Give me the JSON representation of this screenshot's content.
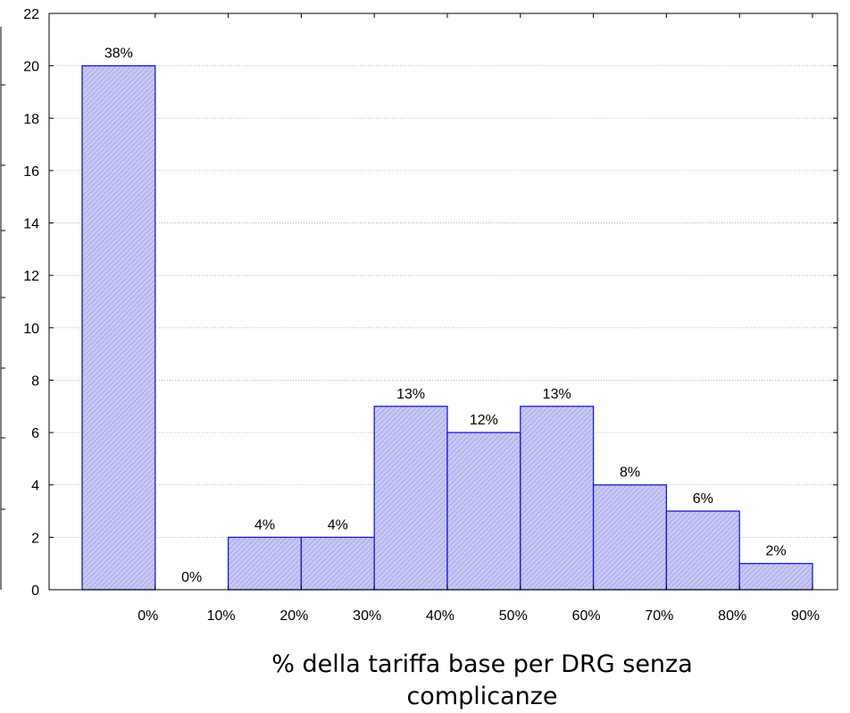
{
  "chart_data": {
    "type": "bar",
    "title": "",
    "xlabel_line1": "% della tariffa base per DRG senza",
    "xlabel_line2": "complicanze",
    "ylabel": "",
    "ylim": [
      0,
      22
    ],
    "yticks": [
      0,
      2,
      4,
      6,
      8,
      10,
      12,
      14,
      16,
      18,
      20,
      22
    ],
    "xtick_labels": [
      "0%",
      "10%",
      "20%",
      "30%",
      "40%",
      "50%",
      "60%",
      "70%",
      "80%",
      "90%"
    ],
    "values": [
      20,
      0,
      2,
      2,
      7,
      6,
      7,
      4,
      3,
      1
    ],
    "bar_labels": [
      "38%",
      "0%",
      "4%",
      "4%",
      "13%",
      "12%",
      "13%",
      "8%",
      "6%",
      "2%"
    ],
    "grid": "horizontal dotted",
    "bar_fill": "#c4c4f2",
    "bar_edge": "#1a1ad0"
  }
}
